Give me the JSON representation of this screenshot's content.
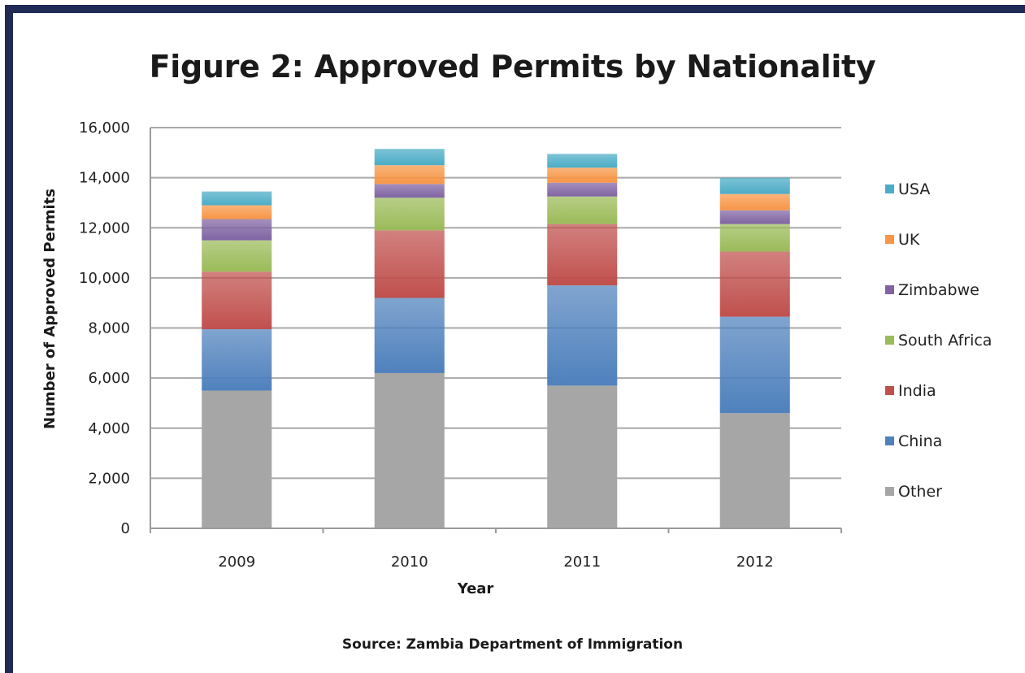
{
  "chart_data": {
    "type": "bar",
    "stacked": true,
    "title": "Figure 2: Approved Permits by Nationality",
    "xlabel": "Year",
    "ylabel": "Number of Approved Permits",
    "source": "Source: Zambia Department of Immigration",
    "categories": [
      "2009",
      "2010",
      "2011",
      "2012"
    ],
    "ylim": [
      0,
      16000
    ],
    "yticks": [
      "0",
      "2,000",
      "4,000",
      "6,000",
      "8,000",
      "10,000",
      "12,000",
      "14,000",
      "16,000"
    ],
    "grid": true,
    "legend_position": "right",
    "series": [
      {
        "name": "Other",
        "color": "#a6a6a6",
        "values": [
          5500,
          6200,
          5700,
          4600
        ]
      },
      {
        "name": "China",
        "color": "#4f81bd",
        "values": [
          2450,
          3000,
          4000,
          3850
        ]
      },
      {
        "name": "India",
        "color": "#c0504d",
        "values": [
          2300,
          2700,
          2450,
          2600
        ]
      },
      {
        "name": "South Africa",
        "color": "#9bbb59",
        "values": [
          1250,
          1300,
          1100,
          1100
        ]
      },
      {
        "name": "Zimbabwe",
        "color": "#8064a2",
        "values": [
          850,
          550,
          550,
          550
        ]
      },
      {
        "name": "UK",
        "color": "#f79646",
        "values": [
          550,
          750,
          600,
          650
        ]
      },
      {
        "name": "USA",
        "color": "#4bacc6",
        "values": [
          550,
          650,
          550,
          650
        ]
      }
    ]
  }
}
